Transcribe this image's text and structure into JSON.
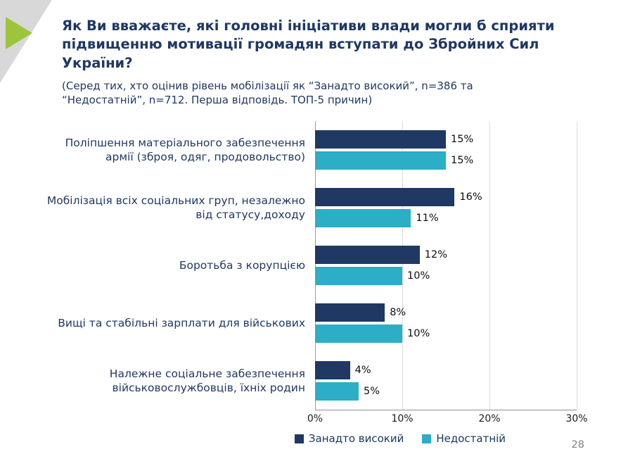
{
  "header": {
    "title": "Як Ви вважаєте, які головні ініціативи влади могли б сприяти підвищенню мотивації громадян вступати до Збройних Сил України?",
    "subtitle": "(Серед тих, хто оцінив рівень мобілізації як “Занадто високий”, n=386 та “Недостатній”, n=712. Перша відповідь. ТОП-5 причин)"
  },
  "chart_data": {
    "type": "bar",
    "orientation": "horizontal",
    "categories": [
      "Поліпшення матеріального забезпечення армії (зброя, одяг, продовольство)",
      "Мобілізація всіх соціальних груп, незалежно від статусу,доходу",
      "Боротьба з корупцією",
      "Вищі та стабільні зарплати для військових",
      "Належне соціальне забезпечення військовослужбовців, їхніх родин"
    ],
    "series": [
      {
        "name": "Занадто високий",
        "color": "#1F3864",
        "values": [
          15,
          16,
          12,
          8,
          4
        ]
      },
      {
        "name": "Недостатній",
        "color": "#2BAEC6",
        "values": [
          15,
          11,
          10,
          10,
          5
        ]
      }
    ],
    "value_suffix": "%",
    "xlim": [
      0,
      30
    ],
    "x_ticks": [
      "0%",
      "10%",
      "20%",
      "30%"
    ],
    "grid": true,
    "legend_position": "bottom"
  },
  "footer": {
    "page_number": "28"
  },
  "colors": {
    "title_navy": "#1F3864",
    "accent_green": "#9DC53B",
    "corner_gray": "#D8D8D8"
  }
}
